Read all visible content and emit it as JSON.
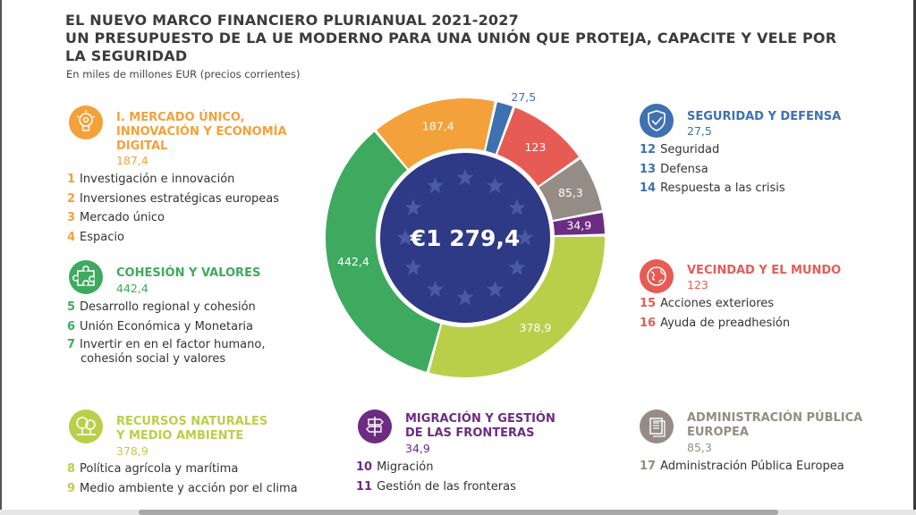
{
  "title_lines": [
    "EL NUEVO MARCO FINANCIERO PLURIANUAL 2021-2027",
    "UN PRESUPUESTO DE LA UE MODERNO PARA UNA UNIÓN QUE PROTEJA, CAPACITE Y VELE POR",
    "LA SEGURIDAD"
  ],
  "subtitle": "En miles de millones EUR (precios corrientes)",
  "colors": {
    "orange": "#f3a13b",
    "green": "#3eaa5f",
    "lime": "#b9cf4a",
    "purple": "#6d2c82",
    "grey": "#958c86",
    "red": "#e65c55",
    "blue": "#3f70b0",
    "navy": "#2e3a86"
  },
  "categories": {
    "mercado": {
      "icon": "bulb-gear-icon",
      "title_lines": [
        "I. MERCADO ÚNICO,",
        "INNOVACIÓN Y ECONOMÍA",
        "DIGITAL"
      ],
      "total": "187,4",
      "items": [
        {
          "num": "1",
          "label": "Investigación e innovación"
        },
        {
          "num": "2",
          "label": "Inversiones estratégicas europeas"
        },
        {
          "num": "3",
          "label": "Mercado único"
        },
        {
          "num": "4",
          "label": "Espacio"
        }
      ]
    },
    "cohesion": {
      "icon": "puzzle-icon",
      "title_lines": [
        "COHESIÓN Y VALORES"
      ],
      "total": "442,4",
      "items": [
        {
          "num": "5",
          "label": "Desarrollo regional y cohesión"
        },
        {
          "num": "6",
          "label": "Unión Económica y Monetaria"
        },
        {
          "num": "7",
          "label": "Invertir en en el factor humano,",
          "label2": "cohesión social y valores"
        }
      ]
    },
    "recursos": {
      "icon": "trees-icon",
      "title_lines": [
        "RECURSOS NATURALES",
        "Y MEDIO AMBIENTE"
      ],
      "total": "378,9",
      "items": [
        {
          "num": "8",
          "label": "Política agrícola y marítima"
        },
        {
          "num": "9",
          "label": "Medio ambiente y acción por el clima"
        }
      ]
    },
    "migracion": {
      "icon": "signpost-icon",
      "title_lines": [
        "MIGRACIÓN Y GESTIÓN",
        "DE LAS FRONTERAS"
      ],
      "total": "34,9",
      "items": [
        {
          "num": "10",
          "label": "Migración"
        },
        {
          "num": "11",
          "label": "Gestión de las fronteras"
        }
      ]
    },
    "seguridad": {
      "icon": "shield-check-icon",
      "title_lines": [
        "SEGURIDAD Y DEFENSA"
      ],
      "total": "27,5",
      "items": [
        {
          "num": "12",
          "label": "Seguridad"
        },
        {
          "num": "13",
          "label": "Defensa"
        },
        {
          "num": "14",
          "label": "Respuesta a las crisis"
        }
      ]
    },
    "vecindad": {
      "icon": "globe-pin-icon",
      "title_lines": [
        "VECINDAD Y EL MUNDO"
      ],
      "total": "123",
      "items": [
        {
          "num": "15",
          "label": "Acciones exteriores"
        },
        {
          "num": "16",
          "label": "Ayuda de preadhesión"
        }
      ]
    },
    "administracion": {
      "icon": "documents-icon",
      "title_lines": [
        "ADMINISTRACIÓN PÚBLICA",
        "EUROPEA"
      ],
      "total": "85,3",
      "items": [
        {
          "num": "17",
          "label": "Administración Pública Europea"
        }
      ]
    }
  },
  "chart_data": {
    "type": "pie",
    "center_label": "€1 279,4",
    "total": 1279.4,
    "slices": [
      {
        "key": "orange",
        "label": "187,4",
        "value": 187.4
      },
      {
        "key": "blue",
        "label": "27,5",
        "value": 27.5
      },
      {
        "key": "red",
        "label": "123",
        "value": 123
      },
      {
        "key": "grey",
        "label": "85,3",
        "value": 85.3
      },
      {
        "key": "purple",
        "label": "34,9",
        "value": 34.9
      },
      {
        "key": "lime",
        "label": "378,9",
        "value": 378.9
      },
      {
        "key": "green",
        "label": "442,4",
        "value": 442.4
      }
    ]
  }
}
